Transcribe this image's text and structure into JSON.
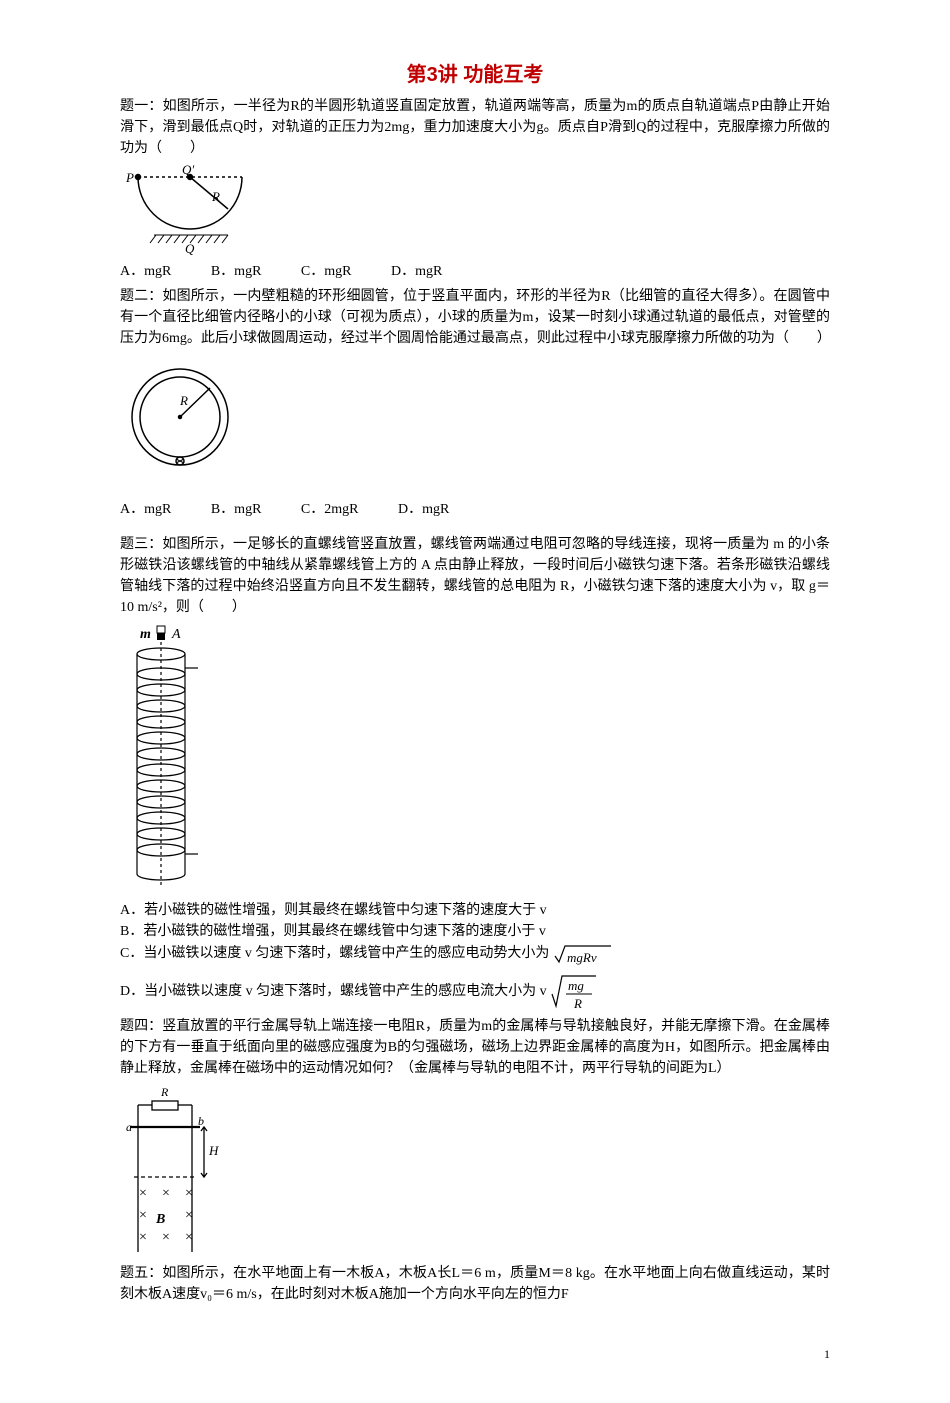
{
  "title": "第3讲  功能互考",
  "q1": {
    "stem": "题一：如图所示，一半径为R的半圆形轨道竖直固定放置，轨道两端等高，质量为m的质点自轨道端点P由静止开始滑下，滑到最低点Q时，对轨道的正压力为2mg，重力加速度大小为g。质点自P滑到Q的过程中，克服摩擦力所做的功为（　　）",
    "opts": {
      "A": "A．mgR",
      "B": "B．mgR",
      "C": "C．mgR",
      "D": "D．mgR"
    }
  },
  "q2": {
    "stem": "题二：如图所示，一内壁粗糙的环形细圆管，位于竖直平面内，环形的半径为R（比细管的直径大得多）。在圆管中有一个直径比细管内径略小的小球（可视为质点），小球的质量为m，设某一时刻小球通过轨道的最低点，对管壁的压力为6mg。此后小球做圆周运动，经过半个圆周恰能通过最高点，则此过程中小球克服摩擦力所做的功为（　　）",
    "opts": {
      "A": "A．mgR",
      "B": "B．mgR",
      "C": "C．2mgR",
      "D": "D．mgR"
    }
  },
  "q3": {
    "stem1": "题三：如图所示，一足够长的直螺线管竖直放置，螺线管两端通过电阻可忽略的导线连接，现将一质量为 m 的小条形磁铁沿该螺线管的中轴线从紧靠螺线管上方的 A 点由静止释放，一段时间后小磁铁匀速下落。若条形磁铁沿螺线管轴线下落的过程中始终沿竖直方向且不发生翻转，螺线管的总电阻为 R，小磁铁匀速下落的速度大小为 v，取 g＝10 m/s²，则（　　）",
    "optA": "A．若小磁铁的磁性增强，则其最终在螺线管中匀速下落的速度大于 v",
    "optB": "B．若小磁铁的磁性增强，则其最终在螺线管中匀速下落的速度小于 v",
    "optC_pre": "C．当小磁铁以速度 v 匀速下落时，螺线管中产生的感应电动势大小为",
    "optC_rad": "mgRv",
    "optD_pre": "D．当小磁铁以速度 v 匀速下落时，螺线管中产生的感应电流大小为 v",
    "optD_num": "mg",
    "optD_den": "R"
  },
  "q4": {
    "stem": "题四：竖直放置的平行金属导轨上端连接一电阻R，质量为m的金属棒与导轨接触良好，并能无摩擦下滑。在金属棒的下方有一垂直于纸面向里的磁感应强度为B的匀强磁场，磁场上边界距金属棒的高度为H，如图所示。把金属棒由静止释放，金属棒在磁场中的运动情况如何？（金属棒与导轨的电阻不计，两平行导轨的间距为L）"
  },
  "q5": {
    "stem": "题五：如图所示，在水平地面上有一木板A，木板A长L＝6 m，质量M＝8 kg。在水平地面上向右做直线运动，某时刻木板A速度v₀＝6 m/s，在此时刻对木板A施加一个方向水平向左的恒力F"
  },
  "fig1": {
    "P": "P",
    "Q": "Q",
    "Qtop": "Q′",
    "R": "R",
    "stroke": "#000000"
  },
  "fig2": {
    "R": "R",
    "stroke": "#000000"
  },
  "fig3": {
    "m": "m",
    "A": "A",
    "stroke": "#000000"
  },
  "fig4": {
    "R": "R",
    "a": "a",
    "b": "b",
    "H": "H",
    "B": "B",
    "stroke": "#000000"
  },
  "pageNum": "1"
}
